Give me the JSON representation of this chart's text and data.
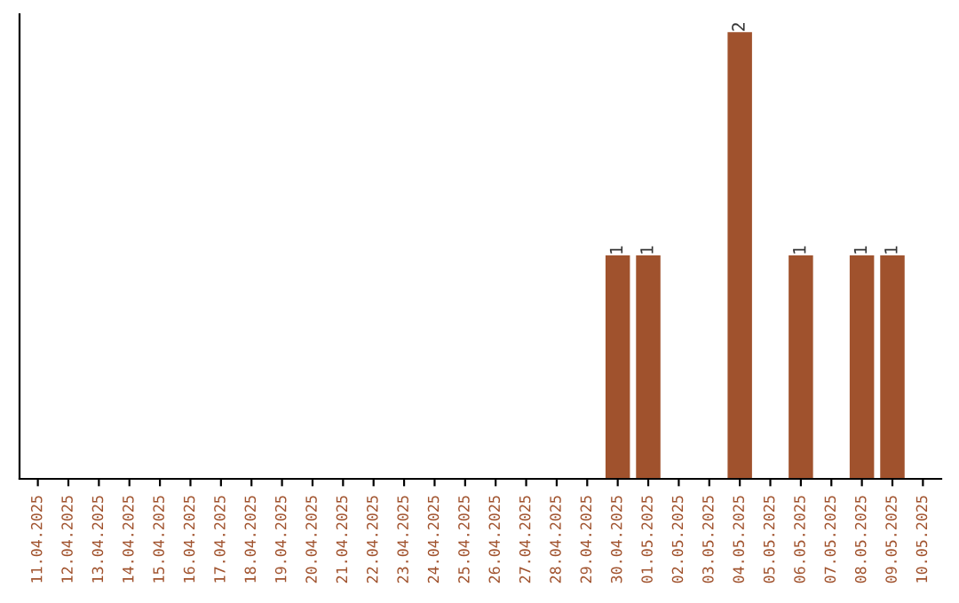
{
  "chart_data": {
    "type": "bar",
    "categories": [
      "11.04.2025",
      "12.04.2025",
      "13.04.2025",
      "14.04.2025",
      "15.04.2025",
      "16.04.2025",
      "17.04.2025",
      "18.04.2025",
      "19.04.2025",
      "20.04.2025",
      "21.04.2025",
      "22.04.2025",
      "23.04.2025",
      "24.04.2025",
      "25.04.2025",
      "26.04.2025",
      "27.04.2025",
      "28.04.2025",
      "29.04.2025",
      "30.04.2025",
      "01.05.2025",
      "02.05.2025",
      "03.05.2025",
      "04.05.2025",
      "05.05.2025",
      "06.05.2025",
      "07.05.2025",
      "08.05.2025",
      "09.05.2025",
      "10.05.2025"
    ],
    "values": [
      null,
      null,
      null,
      null,
      null,
      null,
      null,
      null,
      null,
      null,
      null,
      null,
      null,
      null,
      null,
      null,
      null,
      null,
      null,
      1,
      1,
      null,
      null,
      2,
      null,
      1,
      null,
      1,
      1,
      null
    ],
    "color": "#a0522d",
    "ylim": [
      0,
      2.08
    ],
    "data_labels": true,
    "tick_labels": "x",
    "grid": false
  }
}
